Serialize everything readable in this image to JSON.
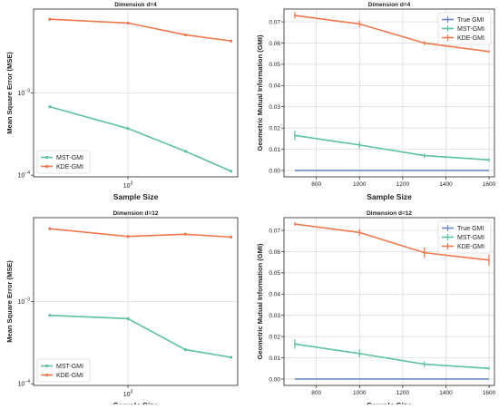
{
  "colors": {
    "mst": "#5cc1a2",
    "kde": "#f2774b",
    "true": "#6f88c2",
    "grid": "#d8d8d8",
    "axis": "#222222"
  },
  "chart_data": [
    {
      "id": "tl",
      "type": "line",
      "title": "Dimension d=4",
      "xlabel": "Sample Size",
      "ylabel": "Mean Square Error (MSE)",
      "x_scale": "log",
      "y_scale": "log",
      "xlim": [
        650,
        1650
      ],
      "ylim": [
        9.55e-05,
        0.0105
      ],
      "x_ticks": [
        {
          "value": 1000,
          "label": "10^3"
        }
      ],
      "y_ticks": [
        {
          "value": 0.001,
          "label": "10^-3"
        },
        {
          "value": 0.0001,
          "label": "10^-4"
        }
      ],
      "grid": true,
      "legend": "lower-left",
      "x": [
        700,
        1000,
        1300,
        1600
      ],
      "series": [
        {
          "name": "MST-GMI",
          "color_key": "mst",
          "values": [
            0.00068,
            0.00037,
            0.000195,
            0.000112
          ]
        },
        {
          "name": "KDE-GMI",
          "color_key": "kde",
          "values": [
            0.0079,
            0.0071,
            0.0051,
            0.0043
          ]
        }
      ]
    },
    {
      "id": "tr",
      "type": "line",
      "title": "Dimension d=4",
      "xlabel": "Sample Size",
      "ylabel": "Geometric Mutual Information (GMI)",
      "x_scale": "linear",
      "y_scale": "linear",
      "xlim": [
        650,
        1625
      ],
      "ylim": [
        -0.003,
        0.076
      ],
      "x_ticks": [
        {
          "value": 800,
          "label": "800"
        },
        {
          "value": 1000,
          "label": "1000"
        },
        {
          "value": 1200,
          "label": "1200"
        },
        {
          "value": 1400,
          "label": "1400"
        },
        {
          "value": 1600,
          "label": "1600"
        }
      ],
      "y_ticks": [
        {
          "value": 0,
          "label": "0.00"
        },
        {
          "value": 0.01,
          "label": "0.01"
        },
        {
          "value": 0.02,
          "label": "0.02"
        },
        {
          "value": 0.03,
          "label": "0.03"
        },
        {
          "value": 0.04,
          "label": "0.04"
        },
        {
          "value": 0.05,
          "label": "0.05"
        },
        {
          "value": 0.06,
          "label": "0.06"
        },
        {
          "value": 0.07,
          "label": "0.07"
        }
      ],
      "grid": true,
      "legend": "upper-right",
      "x": [
        700,
        1000,
        1300,
        1600
      ],
      "series": [
        {
          "name": "True GMI",
          "color_key": "true",
          "values": [
            0,
            0,
            0,
            0
          ],
          "errors": [
            0,
            0,
            0,
            0
          ]
        },
        {
          "name": "MST-GMI",
          "color_key": "mst",
          "values": [
            0.0165,
            0.012,
            0.007,
            0.005
          ],
          "errors": [
            0.0022,
            0.0015,
            0.001,
            0.0008
          ]
        },
        {
          "name": "KDE-GMI",
          "color_key": "kde",
          "values": [
            0.073,
            0.069,
            0.06,
            0.056
          ],
          "errors": [
            0.0015,
            0.0015,
            0.001,
            0.0005
          ]
        }
      ]
    },
    {
      "id": "bl",
      "type": "line",
      "title": "Dimension d=12",
      "xlabel": "Sample Size",
      "ylabel": "Mean Square Error (MSE)",
      "x_scale": "log",
      "y_scale": "log",
      "xlim": [
        650,
        1650
      ],
      "ylim": [
        9.55e-05,
        0.0105
      ],
      "x_ticks": [
        {
          "value": 1000,
          "label": "10^3"
        }
      ],
      "y_ticks": [
        {
          "value": 0.001,
          "label": "10^-3"
        },
        {
          "value": 0.0001,
          "label": "10^-4"
        }
      ],
      "grid": true,
      "legend": "lower-left",
      "x": [
        700,
        1000,
        1300,
        1600
      ],
      "series": [
        {
          "name": "MST-GMI",
          "color_key": "mst",
          "values": [
            0.00068,
            0.00062,
            0.00026,
            0.00021
          ]
        },
        {
          "name": "KDE-GMI",
          "color_key": "kde",
          "values": [
            0.0077,
            0.0062,
            0.0066,
            0.0061
          ]
        }
      ]
    },
    {
      "id": "br",
      "type": "line",
      "title": "Dimension d=12",
      "xlabel": "Sample Size",
      "ylabel": "Geometric Mutual Information (GMI)",
      "x_scale": "linear",
      "y_scale": "linear",
      "xlim": [
        650,
        1625
      ],
      "ylim": [
        -0.003,
        0.076
      ],
      "x_ticks": [
        {
          "value": 800,
          "label": "800"
        },
        {
          "value": 1000,
          "label": "1000"
        },
        {
          "value": 1200,
          "label": "1200"
        },
        {
          "value": 1400,
          "label": "1400"
        },
        {
          "value": 1600,
          "label": "1600"
        }
      ],
      "y_ticks": [
        {
          "value": 0,
          "label": "0.00"
        },
        {
          "value": 0.01,
          "label": "0.01"
        },
        {
          "value": 0.02,
          "label": "0.02"
        },
        {
          "value": 0.03,
          "label": "0.03"
        },
        {
          "value": 0.04,
          "label": "0.04"
        },
        {
          "value": 0.05,
          "label": "0.05"
        },
        {
          "value": 0.06,
          "label": "0.06"
        },
        {
          "value": 0.07,
          "label": "0.07"
        }
      ],
      "grid": true,
      "legend": "upper-right",
      "x": [
        700,
        1000,
        1300,
        1600
      ],
      "series": [
        {
          "name": "True GMI",
          "color_key": "true",
          "values": [
            0,
            0,
            0,
            0
          ],
          "errors": [
            0,
            0,
            0,
            0
          ]
        },
        {
          "name": "MST-GMI",
          "color_key": "mst",
          "values": [
            0.0165,
            0.012,
            0.007,
            0.005
          ],
          "errors": [
            0.0022,
            0.0018,
            0.0013,
            0.0006
          ]
        },
        {
          "name": "KDE-GMI",
          "color_key": "kde",
          "values": [
            0.073,
            0.069,
            0.0595,
            0.056
          ],
          "errors": [
            0.0008,
            0.0015,
            0.0025,
            0.0025
          ]
        }
      ]
    }
  ]
}
